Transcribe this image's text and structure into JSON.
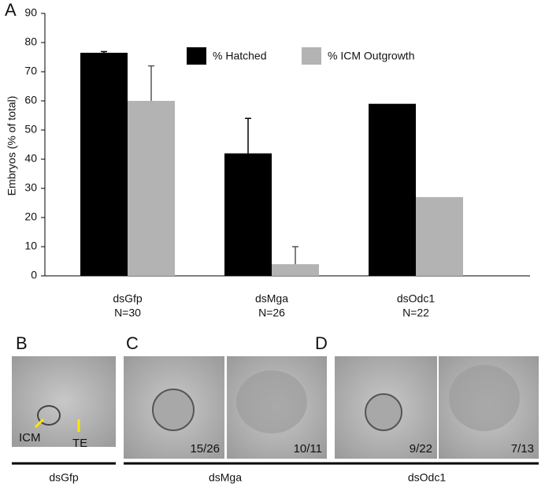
{
  "chart_data": {
    "type": "bar",
    "panel_label": "A",
    "y_label": "Embryos (% of total)",
    "categories": [
      "dsGfp",
      "dsMga",
      "dsOdc1"
    ],
    "sample_sizes": [
      "N=30",
      "N=26",
      "N=22"
    ],
    "series": [
      {
        "name": "% Hatched",
        "color": "#000000",
        "values": [
          76.5,
          42,
          59
        ],
        "errors": [
          0.4,
          12,
          null
        ]
      },
      {
        "name": "% ICM Outgrowth",
        "color": "#b3b3b3",
        "values": [
          60,
          4,
          27
        ],
        "errors": [
          12,
          6,
          null
        ]
      }
    ],
    "ylim": [
      0,
      90
    ],
    "yticks": [
      0,
      10,
      20,
      30,
      40,
      50,
      60,
      70,
      80,
      90
    ],
    "grid": false,
    "legend": "top"
  },
  "figure": {
    "panels": [
      {
        "label": "B",
        "caption": "dsGfp",
        "images": [
          {
            "annotations": [
              "ICM",
              "TE"
            ]
          }
        ]
      },
      {
        "label": "C",
        "caption": "dsMga",
        "images": [
          {
            "annotations": [
              "15/26"
            ]
          },
          {
            "annotations": [
              "10/11"
            ]
          }
        ]
      },
      {
        "label": "D",
        "caption": "dsOdc1",
        "images": [
          {
            "annotations": [
              "9/22"
            ]
          },
          {
            "annotations": [
              "7/13"
            ]
          }
        ]
      }
    ]
  }
}
